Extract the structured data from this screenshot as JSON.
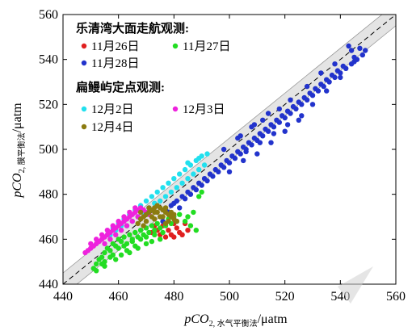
{
  "chart_data": {
    "type": "scatter",
    "title": "",
    "xlabel": {
      "main": "pCO",
      "sub": "2, 水气平衡法",
      "unit": "/μatm"
    },
    "ylabel": {
      "main": "pCO",
      "sub": "2, 膜平衡法",
      "unit": "/μatm"
    },
    "xlim": [
      440,
      560
    ],
    "ylim": [
      440,
      560
    ],
    "xticks": [
      "440",
      "460",
      "480",
      "500",
      "520",
      "540",
      "560"
    ],
    "yticks": [
      "440",
      "460",
      "480",
      "500",
      "520",
      "540",
      "560"
    ],
    "grid": false,
    "legend_position": "top-left",
    "legend_groups": [
      {
        "title": "乐清湾大面走航观测:",
        "entries": [
          "11月26日",
          "11月27日",
          "11月28日"
        ]
      },
      {
        "title": "扁鳗屿定点观测:",
        "entries": [
          "12月2日",
          "12月3日",
          "12月4日"
        ]
      }
    ],
    "reference_line": {
      "slope": 1,
      "intercept": 0,
      "style": "dashed",
      "color": "#000000"
    },
    "confidence_band": {
      "half_width": 5,
      "color": "#e4e4e4"
    },
    "series": [
      {
        "name": "11月26日",
        "color": "#e02020",
        "points": [
          [
            472,
            463
          ],
          [
            474,
            464
          ],
          [
            476,
            466
          ],
          [
            478,
            464
          ],
          [
            480,
            467
          ],
          [
            482,
            463
          ],
          [
            477,
            461
          ],
          [
            484,
            467
          ],
          [
            481,
            465
          ],
          [
            479,
            462
          ],
          [
            473,
            466
          ],
          [
            483,
            462
          ],
          [
            485,
            464
          ],
          [
            475,
            462
          ],
          [
            480,
            461
          ]
        ]
      },
      {
        "name": "11月27日",
        "color": "#22dd22",
        "points": [
          [
            451,
            447
          ],
          [
            452,
            449
          ],
          [
            453,
            451
          ],
          [
            454,
            452
          ],
          [
            455,
            454
          ],
          [
            456,
            456
          ],
          [
            457,
            455
          ],
          [
            458,
            458
          ],
          [
            459,
            457
          ],
          [
            460,
            460
          ],
          [
            461,
            459
          ],
          [
            462,
            461
          ],
          [
            463,
            458
          ],
          [
            464,
            462
          ],
          [
            465,
            460
          ],
          [
            466,
            463
          ],
          [
            467,
            461
          ],
          [
            468,
            464
          ],
          [
            469,
            462
          ],
          [
            470,
            465
          ],
          [
            471,
            463
          ],
          [
            472,
            466
          ],
          [
            473,
            464
          ],
          [
            474,
            467
          ],
          [
            475,
            465
          ],
          [
            476,
            468
          ],
          [
            477,
            466
          ],
          [
            478,
            469
          ],
          [
            479,
            467
          ],
          [
            480,
            470
          ],
          [
            481,
            468
          ],
          [
            482,
            471
          ],
          [
            484,
            468
          ],
          [
            486,
            466
          ],
          [
            488,
            464
          ],
          [
            485,
            470
          ],
          [
            487,
            472
          ],
          [
            489,
            479
          ],
          [
            490,
            481
          ],
          [
            455,
            450
          ],
          [
            458,
            453
          ],
          [
            460,
            456
          ],
          [
            462,
            457
          ],
          [
            465,
            459
          ],
          [
            468,
            460
          ],
          [
            470,
            461
          ],
          [
            473,
            462
          ],
          [
            476,
            463
          ],
          [
            455,
            448
          ],
          [
            457,
            452
          ],
          [
            463,
            455
          ],
          [
            466,
            457
          ],
          [
            452,
            446
          ],
          [
            454,
            449
          ],
          [
            459,
            451
          ],
          [
            461,
            453
          ],
          [
            464,
            454
          ],
          [
            467,
            456
          ],
          [
            470,
            458
          ],
          [
            472,
            459
          ],
          [
            475,
            460
          ]
        ]
      },
      {
        "name": "11月28日",
        "color": "#2233cc",
        "points": [
          [
            476,
            468
          ],
          [
            478,
            472
          ],
          [
            480,
            476
          ],
          [
            482,
            474
          ],
          [
            484,
            478
          ],
          [
            486,
            480
          ],
          [
            488,
            482
          ],
          [
            490,
            484
          ],
          [
            492,
            486
          ],
          [
            494,
            488
          ],
          [
            496,
            490
          ],
          [
            498,
            492
          ],
          [
            500,
            494
          ],
          [
            502,
            496
          ],
          [
            504,
            498
          ],
          [
            506,
            500
          ],
          [
            508,
            502
          ],
          [
            510,
            504
          ],
          [
            512,
            506
          ],
          [
            514,
            508
          ],
          [
            516,
            510
          ],
          [
            518,
            512
          ],
          [
            520,
            514
          ],
          [
            522,
            516
          ],
          [
            524,
            518
          ],
          [
            526,
            520
          ],
          [
            528,
            522
          ],
          [
            530,
            524
          ],
          [
            532,
            526
          ],
          [
            534,
            528
          ],
          [
            536,
            530
          ],
          [
            538,
            532
          ],
          [
            540,
            534
          ],
          [
            542,
            536
          ],
          [
            544,
            538
          ],
          [
            546,
            540
          ],
          [
            548,
            542
          ],
          [
            549,
            544
          ],
          [
            547,
            545
          ],
          [
            545,
            541
          ],
          [
            543,
            546
          ],
          [
            541,
            537
          ],
          [
            539,
            535
          ],
          [
            537,
            533
          ],
          [
            535,
            531
          ],
          [
            533,
            529
          ],
          [
            531,
            527
          ],
          [
            529,
            525
          ],
          [
            527,
            523
          ],
          [
            525,
            521
          ],
          [
            523,
            519
          ],
          [
            521,
            517
          ],
          [
            519,
            515
          ],
          [
            517,
            513
          ],
          [
            515,
            511
          ],
          [
            513,
            509
          ],
          [
            511,
            507
          ],
          [
            509,
            505
          ],
          [
            507,
            503
          ],
          [
            505,
            501
          ],
          [
            503,
            499
          ],
          [
            501,
            497
          ],
          [
            499,
            495
          ],
          [
            497,
            493
          ],
          [
            495,
            491
          ],
          [
            493,
            489
          ],
          [
            491,
            487
          ],
          [
            489,
            485
          ],
          [
            487,
            483
          ],
          [
            485,
            481
          ],
          [
            483,
            479
          ],
          [
            481,
            477
          ],
          [
            479,
            475
          ],
          [
            477,
            473
          ],
          [
            500,
            490
          ],
          [
            505,
            495
          ],
          [
            510,
            498
          ],
          [
            515,
            503
          ],
          [
            520,
            508
          ],
          [
            525,
            513
          ],
          [
            530,
            520
          ],
          [
            535,
            526
          ],
          [
            540,
            532
          ],
          [
            545,
            539
          ],
          [
            498,
            500
          ],
          [
            503,
            505
          ],
          [
            508,
            510
          ],
          [
            512,
            513
          ],
          [
            518,
            518
          ],
          [
            522,
            522
          ],
          [
            528,
            528
          ],
          [
            533,
            534
          ],
          [
            538,
            538
          ],
          [
            544,
            544
          ],
          [
            504,
            506
          ],
          [
            509,
            511
          ],
          [
            514,
            516
          ],
          [
            506,
            499
          ],
          [
            511,
            503
          ],
          [
            516,
            507
          ],
          [
            521,
            511
          ],
          [
            526,
            515
          ]
        ]
      },
      {
        "name": "12月2日",
        "color": "#22e0ee",
        "points": [
          [
            458,
            465
          ],
          [
            460,
            467
          ],
          [
            462,
            469
          ],
          [
            464,
            471
          ],
          [
            466,
            473
          ],
          [
            468,
            475
          ],
          [
            470,
            477
          ],
          [
            472,
            479
          ],
          [
            474,
            481
          ],
          [
            476,
            483
          ],
          [
            478,
            485
          ],
          [
            480,
            487
          ],
          [
            482,
            489
          ],
          [
            484,
            491
          ],
          [
            486,
            493
          ],
          [
            488,
            495
          ],
          [
            490,
            497
          ],
          [
            492,
            498
          ],
          [
            475,
            477
          ],
          [
            479,
            481
          ],
          [
            483,
            485
          ],
          [
            487,
            489
          ],
          [
            463,
            466
          ],
          [
            467,
            470
          ],
          [
            471,
            474
          ],
          [
            473,
            476
          ],
          [
            477,
            479
          ],
          [
            481,
            483
          ],
          [
            485,
            487
          ],
          [
            489,
            491
          ],
          [
            465,
            468
          ],
          [
            469,
            472
          ],
          [
            457,
            462
          ],
          [
            459,
            464
          ],
          [
            461,
            466
          ],
          [
            485,
            494
          ],
          [
            489,
            496
          ],
          [
            491,
            493
          ]
        ]
      },
      {
        "name": "12月3日",
        "color": "#ee22dd",
        "points": [
          [
            448,
            454
          ],
          [
            449,
            455
          ],
          [
            450,
            456
          ],
          [
            451,
            457
          ],
          [
            452,
            458
          ],
          [
            453,
            459
          ],
          [
            454,
            460
          ],
          [
            455,
            461
          ],
          [
            456,
            462
          ],
          [
            457,
            463
          ],
          [
            458,
            464
          ],
          [
            459,
            465
          ],
          [
            460,
            466
          ],
          [
            461,
            467
          ],
          [
            462,
            468
          ],
          [
            463,
            469
          ],
          [
            464,
            470
          ],
          [
            465,
            471
          ],
          [
            466,
            472
          ],
          [
            467,
            473
          ],
          [
            468,
            474
          ],
          [
            469,
            473
          ],
          [
            470,
            472
          ],
          [
            471,
            471
          ],
          [
            450,
            458
          ],
          [
            452,
            460
          ],
          [
            454,
            462
          ],
          [
            456,
            464
          ],
          [
            458,
            466
          ],
          [
            460,
            468
          ],
          [
            462,
            470
          ],
          [
            464,
            472
          ],
          [
            466,
            474
          ],
          [
            455,
            458
          ],
          [
            457,
            460
          ],
          [
            459,
            462
          ],
          [
            461,
            464
          ],
          [
            463,
            466
          ],
          [
            465,
            468
          ],
          [
            467,
            470
          ]
        ]
      },
      {
        "name": "12月4日",
        "color": "#8b7b10",
        "points": [
          [
            467,
            467
          ],
          [
            468,
            469
          ],
          [
            469,
            470
          ],
          [
            470,
            471
          ],
          [
            471,
            472
          ],
          [
            472,
            473
          ],
          [
            473,
            474
          ],
          [
            474,
            475
          ],
          [
            475,
            474
          ],
          [
            476,
            473
          ],
          [
            477,
            472
          ],
          [
            478,
            471
          ],
          [
            479,
            470
          ],
          [
            480,
            469
          ],
          [
            481,
            468
          ],
          [
            470,
            468
          ],
          [
            472,
            470
          ],
          [
            474,
            472
          ],
          [
            476,
            470
          ],
          [
            478,
            468
          ],
          [
            468,
            472
          ],
          [
            471,
            474
          ],
          [
            473,
            472
          ],
          [
            475,
            470
          ],
          [
            477,
            474
          ],
          [
            479,
            472
          ],
          [
            469,
            466
          ],
          [
            473,
            469
          ],
          [
            477,
            467
          ],
          [
            480,
            471
          ]
        ]
      }
    ]
  }
}
